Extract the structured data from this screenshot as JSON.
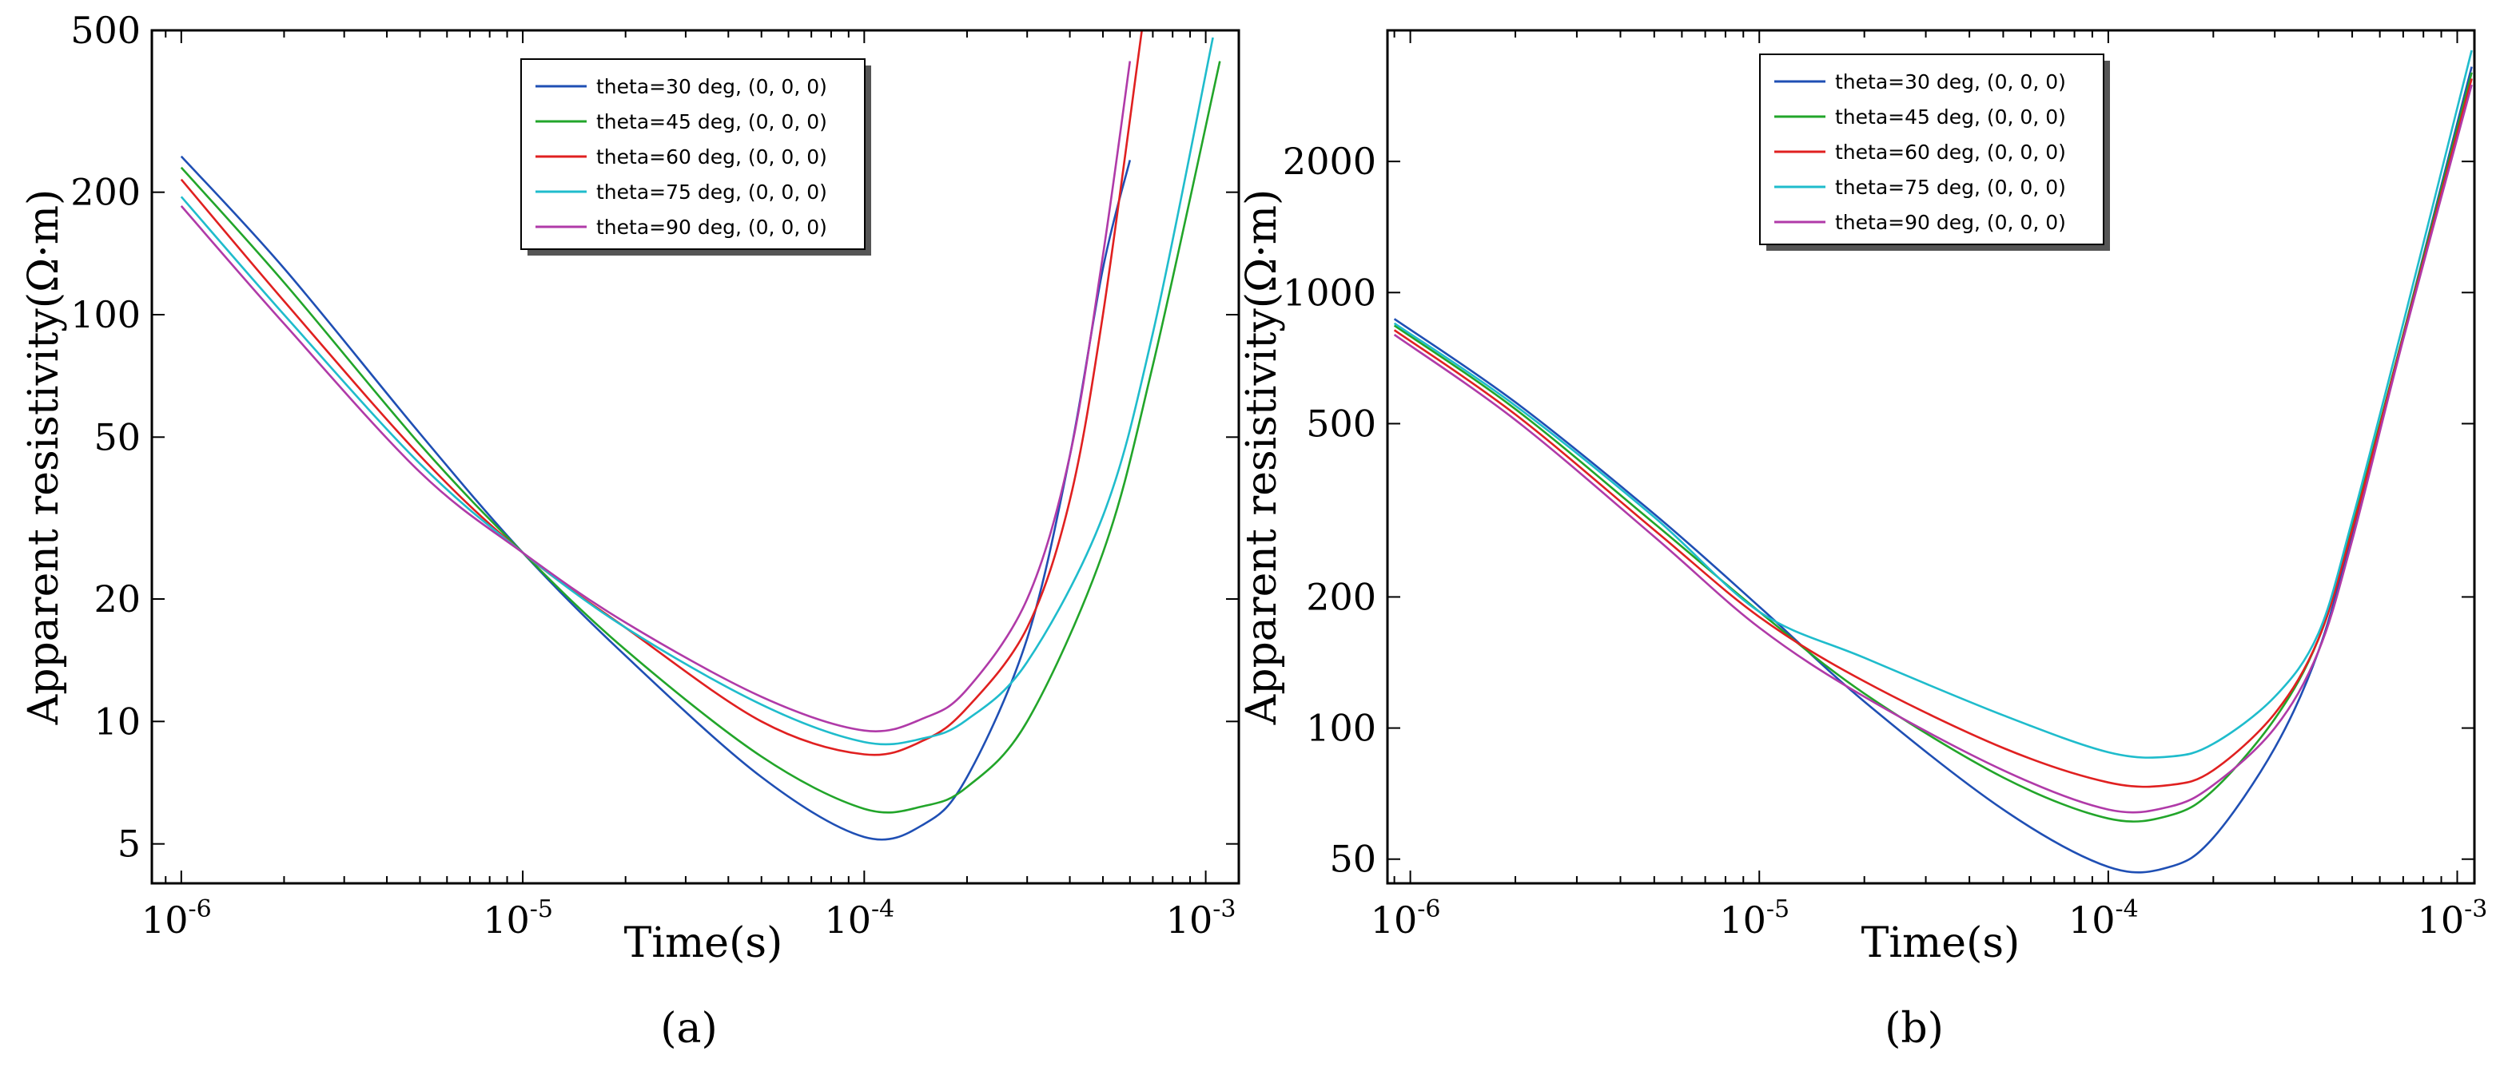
{
  "chart_data": [
    {
      "type": "line",
      "id": "a",
      "caption": "(a)",
      "xlabel": "Time(s)",
      "ylabel": "Apparent resistivity(Ω·m)",
      "xscale": "log",
      "yscale": "log",
      "xlim": [
        8.2e-07,
        0.00125
      ],
      "ylim": [
        4.0,
        500
      ],
      "x_ticks": [
        {
          "base": "10",
          "exp": "-6",
          "value": 1e-06
        },
        {
          "base": "10",
          "exp": "-5",
          "value": 1e-05
        },
        {
          "base": "10",
          "exp": "-4",
          "value": 0.0001
        },
        {
          "base": "10",
          "exp": "-3",
          "value": 0.001
        }
      ],
      "y_ticks": [
        {
          "label": "500",
          "value": 500
        },
        {
          "label": "200",
          "value": 200
        },
        {
          "label": "100",
          "value": 100
        },
        {
          "label": "50",
          "value": 50
        },
        {
          "label": "20",
          "value": 20
        },
        {
          "label": "10",
          "value": 10
        },
        {
          "label": "5",
          "value": 5
        }
      ],
      "legend_position": "top-center",
      "series": [
        {
          "name": "theta=30 deg, (0, 0, 0)",
          "color": "#1f4fb4",
          "x": [
            1e-06,
            2e-06,
            5e-06,
            1e-05,
            2e-05,
            5e-05,
            0.0001,
            0.00015,
            0.0002,
            0.0003,
            0.0004,
            0.0005,
            0.0006
          ],
          "y": [
            245,
            130,
            51,
            26,
            14.5,
            7.3,
            5.2,
            5.6,
            7.3,
            16,
            45,
            130,
            240
          ]
        },
        {
          "name": "theta=45 deg, (0, 0, 0)",
          "color": "#22a52a",
          "x": [
            1e-06,
            2e-06,
            5e-06,
            1e-05,
            2e-05,
            5e-05,
            0.0001,
            0.00015,
            0.0002,
            0.0003,
            0.0005,
            0.0007,
            0.0011
          ],
          "y": [
            230,
            120,
            48,
            26,
            15,
            8.2,
            6.1,
            6.2,
            6.9,
            10,
            26,
            75,
            420
          ]
        },
        {
          "name": "theta=60 deg, (0, 0, 0)",
          "color": "#e02020",
          "x": [
            1e-06,
            2e-06,
            5e-06,
            1e-05,
            2e-05,
            5e-05,
            0.0001,
            0.00015,
            0.0002,
            0.0003,
            0.0004,
            0.0005,
            0.00065
          ],
          "y": [
            215,
            108,
            45,
            26,
            17,
            10,
            8.3,
            9,
            10.8,
            17,
            35,
            100,
            500
          ]
        },
        {
          "name": "theta=75 deg, (0, 0, 0)",
          "color": "#1fbccc",
          "x": [
            1e-06,
            2e-06,
            5e-06,
            1e-05,
            2e-05,
            5e-05,
            0.0001,
            0.00015,
            0.0002,
            0.0003,
            0.0005,
            0.0007,
            0.00105
          ],
          "y": [
            195,
            100,
            43,
            26,
            17,
            11,
            8.9,
            9.1,
            10.1,
            14,
            32,
            90,
            480
          ]
        },
        {
          "name": "theta=90 deg, (0, 0, 0)",
          "color": "#b03aa8",
          "x": [
            1e-06,
            2e-06,
            5e-06,
            1e-05,
            2e-05,
            5e-05,
            0.0001,
            0.00015,
            0.0002,
            0.0003,
            0.0004,
            0.0005,
            0.0006
          ],
          "y": [
            185,
            95,
            41,
            26,
            17.5,
            11.5,
            9.5,
            10.2,
            12,
            20,
            45,
            140,
            420
          ]
        }
      ]
    },
    {
      "type": "line",
      "id": "b",
      "caption": "(b)",
      "xlabel": "Time(s)",
      "ylabel": "Apparent resistivity(Ω·m)",
      "xscale": "log",
      "yscale": "log",
      "xlim": [
        8.6e-07,
        0.00112
      ],
      "ylim": [
        44,
        4000
      ],
      "x_ticks": [
        {
          "base": "10",
          "exp": "-6",
          "value": 1e-06
        },
        {
          "base": "10",
          "exp": "-5",
          "value": 1e-05
        },
        {
          "base": "10",
          "exp": "-4",
          "value": 0.0001
        },
        {
          "base": "10",
          "exp": "-3",
          "value": 0.001
        }
      ],
      "y_ticks": [
        {
          "label": "2000",
          "value": 2000
        },
        {
          "label": "1000",
          "value": 1000
        },
        {
          "label": "500",
          "value": 500
        },
        {
          "label": "200",
          "value": 200
        },
        {
          "label": "100",
          "value": 100
        },
        {
          "label": "50",
          "value": 50
        }
      ],
      "legend_position": "top-center",
      "series": [
        {
          "name": "theta=30 deg, (0, 0, 0)",
          "color": "#1f4fb4",
          "x": [
            9e-07,
            2e-06,
            5e-06,
            1e-05,
            2e-05,
            5e-05,
            0.0001,
            0.00015,
            0.0002,
            0.0003,
            0.0004,
            0.0005,
            0.0007,
            0.0011
          ],
          "y": [
            870,
            560,
            310,
            190,
            115,
            65,
            48,
            48,
            56,
            90,
            150,
            280,
            800,
            3300
          ]
        },
        {
          "name": "theta=45 deg, (0, 0, 0)",
          "color": "#22a52a",
          "x": [
            9e-07,
            2e-06,
            5e-06,
            1e-05,
            2e-05,
            5e-05,
            0.0001,
            0.00015,
            0.0002,
            0.0003,
            0.0004,
            0.0005,
            0.0007,
            0.0011
          ],
          "y": [
            840,
            540,
            295,
            185,
            120,
            77,
            62,
            63,
            72,
            105,
            160,
            290,
            800,
            3200
          ]
        },
        {
          "name": "theta=60 deg, (0, 0, 0)",
          "color": "#e02020",
          "x": [
            9e-07,
            2e-06,
            5e-06,
            1e-05,
            2e-05,
            5e-05,
            0.0001,
            0.00015,
            0.0002,
            0.0003,
            0.0004,
            0.0005,
            0.0007,
            0.0011
          ],
          "y": [
            820,
            525,
            285,
            180,
            128,
            90,
            75,
            74,
            80,
            108,
            160,
            285,
            790,
            3100
          ]
        },
        {
          "name": "theta=75 deg, (0, 0, 0)",
          "color": "#1fbccc",
          "x": [
            9e-07,
            2e-06,
            5e-06,
            1e-05,
            2e-05,
            5e-05,
            0.0001,
            0.00015,
            0.0002,
            0.0003,
            0.0004,
            0.0005,
            0.0007,
            0.0011
          ],
          "y": [
            850,
            550,
            305,
            185,
            145,
            107,
            88,
            86,
            92,
            118,
            165,
            300,
            850,
            3600
          ]
        },
        {
          "name": "theta=90 deg, (0, 0, 0)",
          "color": "#b03aa8",
          "x": [
            9e-07,
            2e-06,
            5e-06,
            1e-05,
            2e-05,
            5e-05,
            0.0001,
            0.00015,
            0.0002,
            0.0003,
            0.0004,
            0.0005,
            0.0007,
            0.0011
          ],
          "y": [
            800,
            510,
            275,
            170,
            118,
            80,
            65,
            66,
            74,
            100,
            150,
            270,
            780,
            3000
          ]
        }
      ]
    }
  ]
}
